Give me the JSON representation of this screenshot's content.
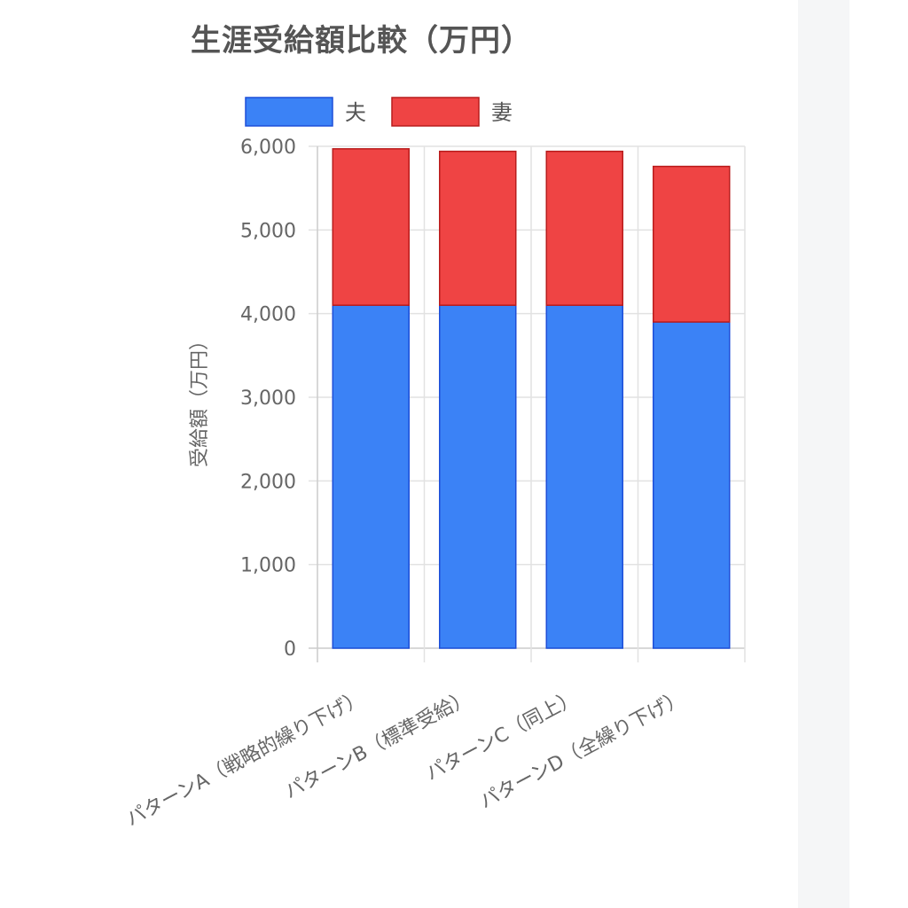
{
  "chart_data": {
    "type": "bar",
    "stacked": true,
    "title": "生涯受給額比較（万円）",
    "xlabel": "",
    "ylabel": "受給額（万円）",
    "ylim": [
      0,
      6000
    ],
    "yticks": [
      "0",
      "1,000",
      "2,000",
      "3,000",
      "4,000",
      "5,000",
      "6,000"
    ],
    "grid": true,
    "legend_position": "top",
    "categories": [
      "パターンA（戦略的繰り下げ）",
      "パターンB（標準受給）",
      "パターンC（同上）",
      "パターンD（全繰り下げ）"
    ],
    "series": [
      {
        "name": "夫",
        "color": "#3b82f6",
        "edge": "#1d4ed8",
        "values": [
          4100,
          4100,
          4100,
          3900
        ]
      },
      {
        "name": "妻",
        "color": "#ef4444",
        "edge": "#b91c1c",
        "values": [
          1870,
          1840,
          1840,
          1860
        ]
      }
    ]
  }
}
